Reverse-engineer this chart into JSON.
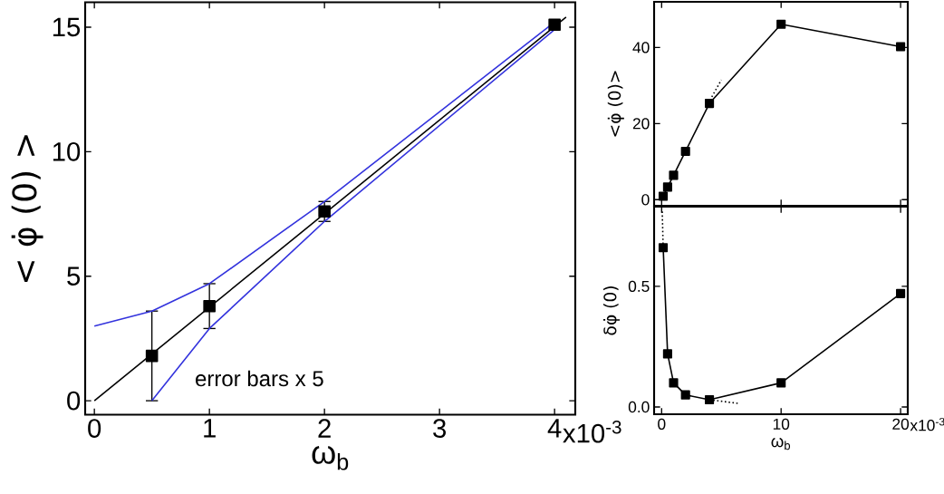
{
  "chart_data": [
    {
      "type": "line",
      "xlabel": "ω$_{b}$",
      "ylabel": "< φ̇ (0) >",
      "xlim": [
        -0.08,
        4.18
      ],
      "ylim": [
        -0.56,
        16.0
      ],
      "xticks": [
        0,
        1,
        2,
        3,
        4
      ],
      "yticks": [
        0,
        5,
        10,
        15
      ],
      "annotations": [
        "error bars  x 5",
        "x10$^{-3}$"
      ],
      "series": [
        {
          "type": "scatter",
          "color": "#000000",
          "marker": "square",
          "x": [
            0.5,
            1,
            2,
            4
          ],
          "values": [
            1.8,
            3.8,
            7.6,
            15.1
          ],
          "errors": [
            1.8,
            0.9,
            0.4,
            null
          ]
        },
        {
          "type": "line",
          "color": "#000000",
          "x": [
            0,
            4.1
          ],
          "values": [
            0,
            15.4
          ]
        },
        {
          "type": "line",
          "color": "#3333dd",
          "x": [
            0,
            0.5,
            1,
            2,
            4
          ],
          "values": [
            3.0,
            3.6,
            4.7,
            8.0,
            15.2
          ]
        },
        {
          "type": "line",
          "color": "#3333dd",
          "x": [
            0.5,
            1,
            2,
            4
          ],
          "values": [
            0,
            2.9,
            7.2,
            14.9
          ]
        }
      ]
    },
    {
      "type": "line",
      "ylabel": "<φ̇ (0)>",
      "xlim": [
        -0.63,
        20.6
      ],
      "ylim": [
        -1.6,
        52
      ],
      "xticks": [
        0,
        10,
        20
      ],
      "yticks": [
        0,
        20,
        40
      ],
      "tick_labels": "y",
      "series": [
        {
          "type": "line",
          "color": "#000000",
          "marker": "square",
          "x": [
            0.13,
            0.5,
            1,
            2,
            4,
            10,
            20
          ],
          "values": [
            0.9,
            3.3,
            6.4,
            12.7,
            25.3,
            46.1,
            40.2
          ]
        },
        {
          "type": "line",
          "color": "#000000",
          "line_style": "dotted",
          "x": [
            4.2,
            5.0
          ],
          "values": [
            27,
            31.5
          ]
        }
      ]
    },
    {
      "type": "line",
      "xlabel": "ω$_{b}$",
      "ylabel": "δφ̇ (0)",
      "xlim": [
        -0.63,
        20.6
      ],
      "ylim": [
        -0.03,
        0.83
      ],
      "xticks": [
        0,
        10,
        20
      ],
      "yticks": [
        {
          "value": 0,
          "label": "0.0"
        },
        0.5
      ],
      "annotations": [
        "x10$^{-3}$"
      ],
      "series": [
        {
          "type": "line",
          "color": "#000000",
          "marker": "square",
          "x": [
            0.13,
            0.5,
            1,
            2,
            4,
            10,
            20
          ],
          "values": [
            0.66,
            0.22,
            0.1,
            0.05,
            0.03,
            0.1,
            0.47
          ]
        },
        {
          "type": "line",
          "color": "#000000",
          "line_style": "dotted",
          "x": [
            0.05,
            0.13
          ],
          "values": [
            0.81,
            0.66
          ]
        },
        {
          "type": "line",
          "color": "#000000",
          "line_style": "dotted",
          "x": [
            4.0,
            6.4
          ],
          "values": [
            0.03,
            0.015
          ]
        }
      ]
    }
  ]
}
